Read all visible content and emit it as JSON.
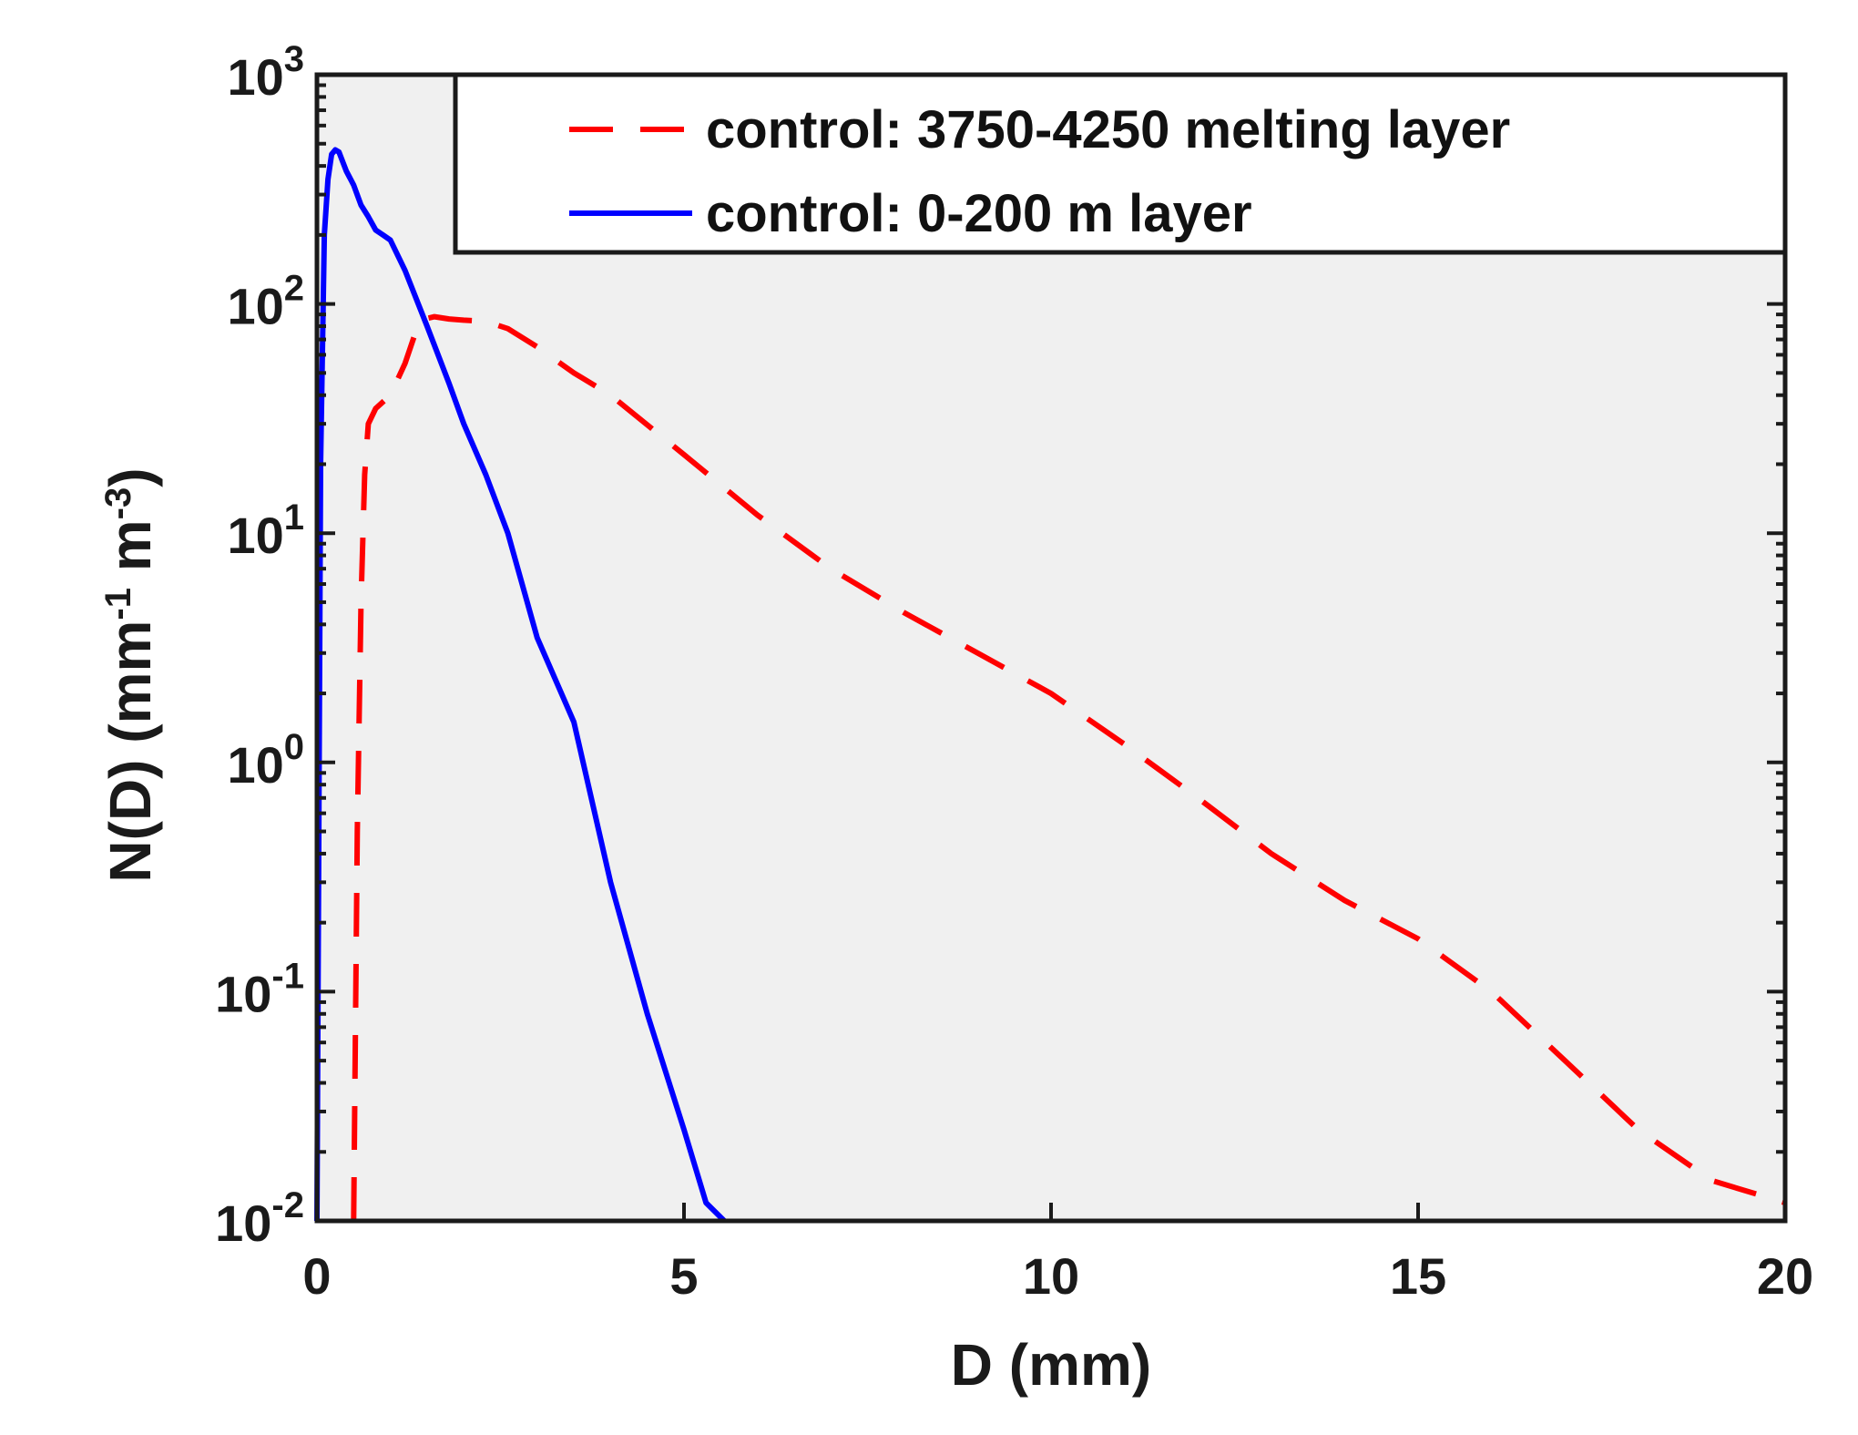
{
  "chart_data": {
    "type": "line",
    "xlabel": "D  (mm)",
    "ylabel": {
      "prefix": "N(D)   (mm",
      "exp1": "-1",
      "middle": " m",
      "exp2": "-3",
      "suffix": ")"
    },
    "xlim": [
      0,
      20
    ],
    "ylim": [
      0.01,
      1000
    ],
    "yscale": "log",
    "grid": false,
    "legend_position": "top-right",
    "background": "#f0f0f0",
    "x_ticks": [
      {
        "value": 0,
        "label": "0"
      },
      {
        "value": 5,
        "label": "5"
      },
      {
        "value": 10,
        "label": "10"
      },
      {
        "value": 15,
        "label": "15"
      },
      {
        "value": 20,
        "label": "20"
      }
    ],
    "y_ticks": [
      {
        "value": 0.01,
        "base": "10",
        "exp": "-2"
      },
      {
        "value": 0.1,
        "base": "10",
        "exp": "-1"
      },
      {
        "value": 1,
        "base": "10",
        "exp": "0"
      },
      {
        "value": 10,
        "base": "10",
        "exp": "1"
      },
      {
        "value": 100,
        "base": "10",
        "exp": "2"
      },
      {
        "value": 1000,
        "base": "10",
        "exp": "3"
      }
    ],
    "series": [
      {
        "name": "control: 3750-4250 melting layer",
        "color": "#ff0000",
        "style": "dashed",
        "x": [
          0.5,
          0.55,
          0.6,
          0.65,
          0.7,
          0.8,
          1.0,
          1.2,
          1.4,
          1.6,
          1.8,
          2.0,
          2.3,
          2.6,
          3.0,
          3.5,
          4.0,
          5.0,
          6.0,
          7.0,
          8.0,
          9.0,
          10.0,
          11.0,
          12.0,
          13.0,
          14.0,
          15.0,
          16.0,
          17.0,
          18.0,
          19.0,
          20.0
        ],
        "y": [
          0.01,
          0.5,
          5,
          18,
          30,
          35,
          40,
          55,
          85,
          88,
          86,
          85,
          84,
          78,
          65,
          50,
          40,
          22,
          12,
          7,
          4.5,
          3,
          2,
          1.2,
          0.7,
          0.4,
          0.25,
          0.17,
          0.1,
          0.05,
          0.025,
          0.015,
          0.012
        ]
      },
      {
        "name": "control: 0-200 m layer",
        "color": "#0000ff",
        "style": "solid",
        "x": [
          0.0,
          0.05,
          0.1,
          0.15,
          0.2,
          0.25,
          0.3,
          0.4,
          0.5,
          0.6,
          0.7,
          0.8,
          0.9,
          1.0,
          1.2,
          1.5,
          1.8,
          2.0,
          2.3,
          2.6,
          3.0,
          3.5,
          4.0,
          4.5,
          5.0,
          5.3,
          5.55
        ],
        "y": [
          0.01,
          20,
          200,
          350,
          450,
          470,
          460,
          380,
          330,
          270,
          240,
          210,
          200,
          190,
          140,
          80,
          45,
          30,
          18,
          10,
          3.5,
          1.5,
          0.3,
          0.08,
          0.025,
          0.012,
          0.01
        ]
      }
    ]
  }
}
